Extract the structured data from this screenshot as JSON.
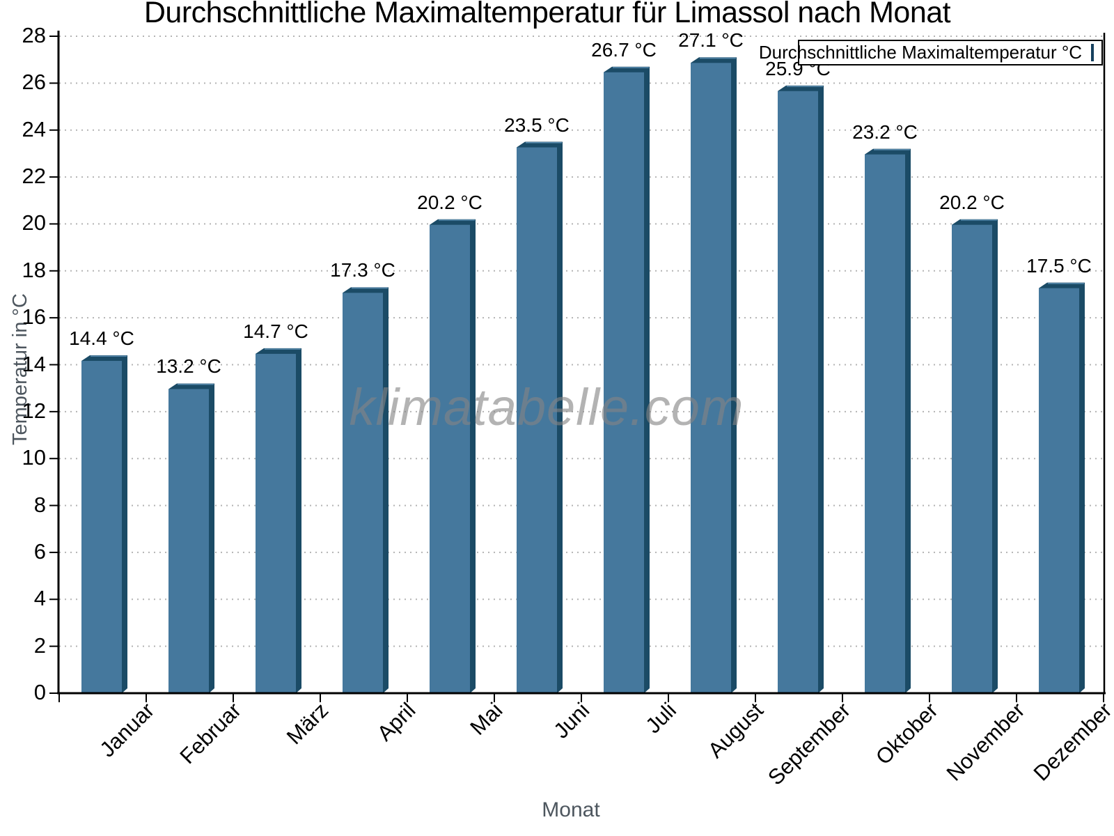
{
  "chart": {
    "title": "Durchschnittliche Maximaltemperatur für Limassol nach Monat",
    "legend_label": "Durchschnittliche Maximaltemperatur °C",
    "ylabel": "Temperatur in °C",
    "xlabel": "Monat",
    "watermark": "klimatabelle.com"
  },
  "chart_data": {
    "type": "bar",
    "title": "Durchschnittliche Maximaltemperatur für Limassol nach Monat",
    "categories": [
      "Januar",
      "Februar",
      "März",
      "April",
      "Mai",
      "Juni",
      "Juli",
      "August",
      "September",
      "Oktober",
      "November",
      "Dezember"
    ],
    "values": [
      14.4,
      13.2,
      14.7,
      17.3,
      20.2,
      23.5,
      26.7,
      27.1,
      25.9,
      23.2,
      20.2,
      17.5
    ],
    "value_labels": [
      "14.4 °C",
      "13.2 °C",
      "14.7 °C",
      "17.3 °C",
      "20.2 °C",
      "23.5 °C",
      "26.7 °C",
      "27.1 °C",
      "25.9 °C",
      "23.2 °C",
      "20.2 °C",
      "17.5 °C"
    ],
    "xlabel": "Monat",
    "ylabel": "Temperatur in °C",
    "ylim": [
      0,
      28
    ],
    "ytick_step": 2,
    "grid": "horizontal dotted",
    "legend": [
      "Durchschnittliche Maximaltemperatur °C"
    ],
    "legend_position": "top-right",
    "bar_style": "pseudo-3d",
    "colors": {
      "bar_face": "#45789D",
      "bar_shade": "#1B4B66",
      "bar_highlight": "#5a8cb0",
      "grid": "#b3b3b3",
      "axis": "#000000",
      "axis_title": "#4d565e",
      "watermark": "#848484"
    }
  }
}
